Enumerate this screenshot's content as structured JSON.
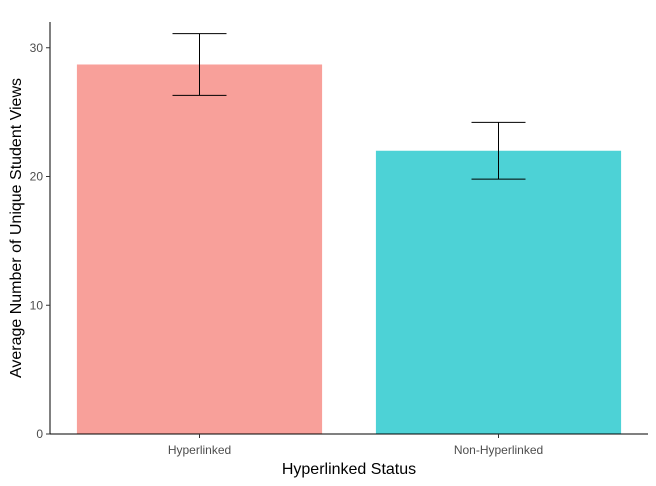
{
  "chart_data": {
    "type": "bar",
    "categories": [
      "Hyperlinked",
      "Non-Hyperlinked"
    ],
    "values": [
      28.7,
      22.0
    ],
    "error_bars": [
      {
        "low": 26.3,
        "high": 31.1
      },
      {
        "low": 19.8,
        "high": 24.2
      }
    ],
    "colors": [
      "#F8A09A",
      "#4DD2D6"
    ],
    "xlabel": "Hyperlinked Status",
    "ylabel": "Average Number of Unique Student Views",
    "ylim": [
      0,
      32
    ],
    "yticks": [
      "0",
      "10",
      "20",
      "30"
    ],
    "grid": false,
    "legend": "none"
  }
}
